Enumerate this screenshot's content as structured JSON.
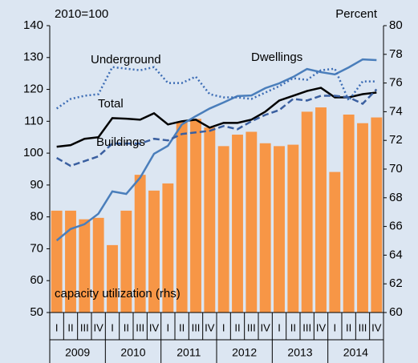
{
  "chart_data": {
    "type": "bar_line",
    "ylabel": "2010=100",
    "y2label": "Percent",
    "categories": [
      "I",
      "II",
      "III",
      "IV",
      "I",
      "II",
      "III",
      "IV",
      "I",
      "II",
      "III",
      "IV",
      "I",
      "II",
      "III",
      "IV",
      "I",
      "II",
      "III",
      "IV",
      "I",
      "II",
      "III",
      "IV"
    ],
    "years": [
      "2009",
      "2010",
      "2011",
      "2012",
      "2013",
      "2014"
    ],
    "ylim": [
      50,
      140
    ],
    "yticks": [
      50,
      60,
      70,
      80,
      90,
      100,
      110,
      120,
      130,
      140
    ],
    "y2lim": [
      60,
      80
    ],
    "y2ticks": [
      60,
      62,
      64,
      66,
      68,
      70,
      72,
      74,
      76,
      78,
      80
    ],
    "series": [
      {
        "name": "capacity utilization (rhs)",
        "kind": "bar",
        "axis": "y2",
        "color": "#f79646",
        "values": [
          67.1,
          67.1,
          66.5,
          66.6,
          64.7,
          67.1,
          69.6,
          68.5,
          69.0,
          73.3,
          73.5,
          72.9,
          71.6,
          72.4,
          72.6,
          71.8,
          71.6,
          71.7,
          74.0,
          74.3,
          69.8,
          73.8,
          73.2,
          73.6
        ]
      },
      {
        "name": "Total",
        "kind": "line",
        "line_style": "solid",
        "color": "#000000",
        "values": [
          102,
          102.5,
          104.5,
          105,
          111,
          110.8,
          110.5,
          112.5,
          109,
          110,
          110.5,
          108,
          109.5,
          109.5,
          110.5,
          113,
          116.5,
          118,
          119.5,
          120.5,
          117.5,
          117.5,
          118.5,
          119
        ]
      },
      {
        "name": "Dwellings",
        "kind": "line",
        "line_style": "solid",
        "color": "#4a7ebb",
        "values": [
          72.6,
          76.2,
          77.7,
          81,
          88,
          87.2,
          92.3,
          99.8,
          102.3,
          109,
          111.6,
          114,
          115.9,
          117.9,
          118.1,
          120.4,
          121.9,
          123.9,
          126.4,
          125.4,
          124.7,
          126.9,
          129.4,
          129.2
        ]
      },
      {
        "name": "Underground",
        "kind": "line",
        "line_style": "dotted",
        "color": "#3d6db5",
        "values": [
          114,
          117,
          118,
          118.5,
          127,
          126.5,
          126,
          127,
          122,
          122,
          124,
          118.5,
          117.5,
          117.5,
          117,
          119,
          121,
          123.5,
          123,
          126,
          126.5,
          116.5,
          122.5,
          122.5
        ]
      },
      {
        "name": "Buildings",
        "kind": "line",
        "line_style": "dashed",
        "color": "#3a5fa0",
        "values": [
          98.5,
          96,
          97.5,
          99,
          103,
          103,
          103,
          104.5,
          104,
          106,
          106.5,
          107,
          108.5,
          107.5,
          110,
          112,
          113.5,
          117,
          116.5,
          118,
          118,
          117.5,
          115.5,
          120
        ]
      }
    ]
  }
}
